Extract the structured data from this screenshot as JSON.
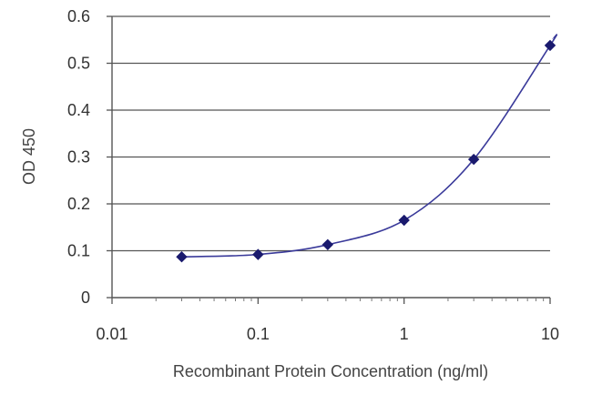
{
  "chart_data": {
    "type": "scatter",
    "title": "",
    "xlabel": "Recombinant Protein Concentration (ng/ml)",
    "ylabel": "OD 450",
    "x_scale": "log",
    "xlim": [
      0.01,
      10
    ],
    "ylim": [
      0,
      0.6
    ],
    "x_ticks": [
      "0.01",
      "0.1",
      "1",
      "10"
    ],
    "y_ticks": [
      "0",
      "0.1",
      "0.2",
      "0.3",
      "0.4",
      "0.5",
      "0.6"
    ],
    "grid": "horizontal",
    "legend": "none",
    "series": [
      {
        "x": [
          0.03,
          0.1,
          0.3,
          1,
          3,
          10
        ],
        "y": [
          0.087,
          0.092,
          0.113,
          0.165,
          0.295,
          0.538
        ],
        "marker": "diamond",
        "color": "#1a1a6e",
        "fit_line": true
      }
    ]
  }
}
